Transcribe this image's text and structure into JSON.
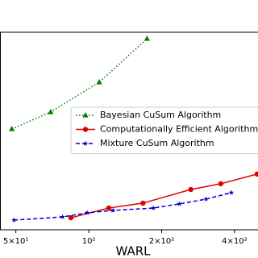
{
  "chart_data": {
    "type": "line",
    "xlabel": "WARL",
    "xscale": "log",
    "xlim": [
      43,
      500
    ],
    "ylim": [
      0,
      100
    ],
    "xticks": [
      {
        "value": 50,
        "label": "5×10¹"
      },
      {
        "value": 100,
        "label": "10²"
      },
      {
        "value": 200,
        "label": "2×10²"
      },
      {
        "value": 400,
        "label": "4×10²"
      }
    ],
    "legend": "center right",
    "series": [
      {
        "name": "Bayesian CuSum Algorithm",
        "color": "#008000",
        "marker": "triangle",
        "dash": "dotted",
        "x": [
          48.1,
          69.6,
          110.5,
          174
        ],
        "values": [
          51,
          59.6,
          74.7,
          96.7
        ]
      },
      {
        "name": "Computationally Efficient Algorithm",
        "color": "#e00000",
        "marker": "circle",
        "dash": "solid",
        "x": [
          84.4,
          121,
          167.5,
          264,
          351,
          496
        ],
        "values": [
          6.1,
          11,
          13.5,
          20.4,
          23.3,
          28.2
        ]
      },
      {
        "name": "Mixture CuSum Algorithm",
        "color": "#0000cc",
        "marker": "star",
        "dash": "dashed",
        "x": [
          49.1,
          78,
          98.5,
          126,
          185,
          237,
          305,
          388
        ],
        "values": [
          4.9,
          6.5,
          8.6,
          9.8,
          11,
          13.1,
          15.5,
          18.8
        ]
      }
    ]
  }
}
